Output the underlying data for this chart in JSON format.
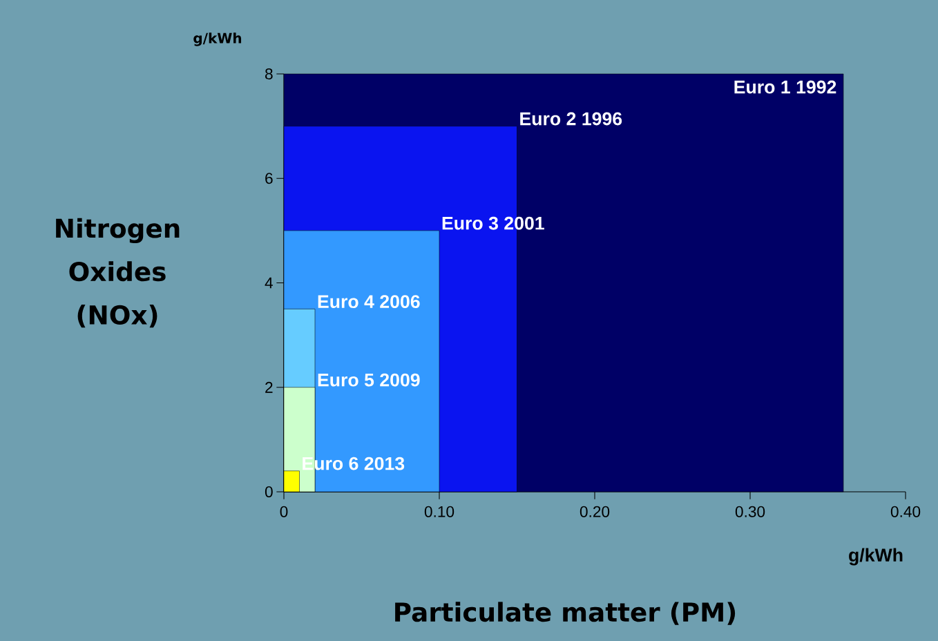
{
  "chart_data": {
    "type": "area",
    "xlabel": "Particulate matter (PM)",
    "ylabel": "Nitrogen Oxides (NOx)",
    "annotations": [
      "g/kWh",
      "g/kWh"
    ],
    "xlim": [
      0,
      0.4
    ],
    "ylim": [
      0,
      8
    ],
    "xticks": [
      0,
      {
        "value": 0.1,
        "label": "0.10"
      },
      {
        "value": 0.2,
        "label": "0.20"
      },
      {
        "value": 0.3,
        "label": "0.30"
      },
      {
        "value": 0.4,
        "label": "0.40"
      }
    ],
    "yticks": [
      0,
      2,
      4,
      6,
      8
    ],
    "series": [
      {
        "name": "Euro 1 1992",
        "color": "#000066",
        "x": [
          0,
          0.36
        ],
        "values": [
          8,
          8
        ]
      },
      {
        "name": "Euro 2 1996",
        "color": "#0a14f0",
        "x": [
          0,
          0.15
        ],
        "values": [
          7,
          7
        ]
      },
      {
        "name": "Euro 3 2001",
        "color": "#3399ff",
        "x": [
          0,
          0.1
        ],
        "values": [
          5,
          5
        ]
      },
      {
        "name": "Euro 4 2006",
        "color": "#66ccff",
        "x": [
          0,
          0.02
        ],
        "values": [
          3.5,
          3.5
        ]
      },
      {
        "name": "Euro 5 2009",
        "color": "#ccffcc",
        "x": [
          0,
          0.02
        ],
        "values": [
          2,
          2
        ]
      },
      {
        "name": "Euro 6 2013",
        "color": "#ffff00",
        "x": [
          0,
          0.01
        ],
        "values": [
          0.4,
          0.4
        ]
      }
    ]
  }
}
